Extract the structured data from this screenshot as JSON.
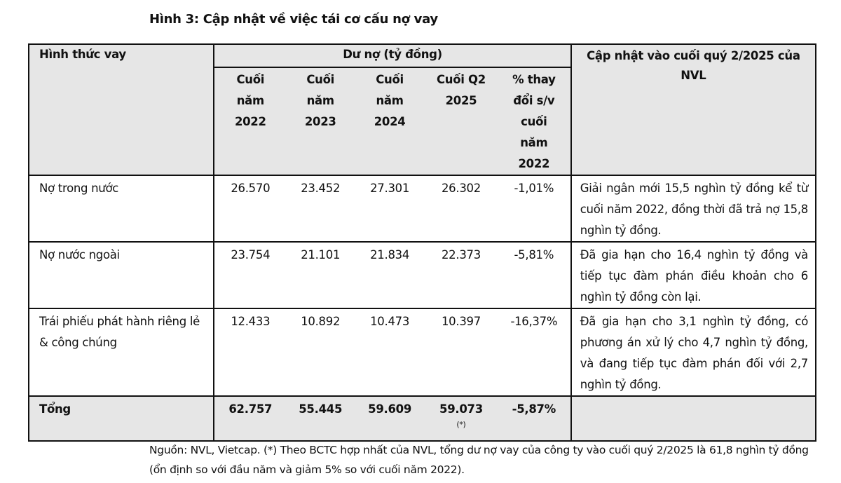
{
  "title": "Hình 3: Cập nhật về việc tái cơ cấu nợ vay",
  "table": {
    "header": {
      "col1": "Hình thức vay",
      "group": "Dư nợ (tỷ đồng)",
      "sub": [
        "Cuối năm 2022",
        "Cuối năm 2023",
        "Cuối năm 2024",
        "Cuối Q2 2025",
        "% thay đổi s/v cuối năm 2022"
      ],
      "col7": "Cập nhật vào cuối quý 2/2025 của NVL"
    },
    "rows": [
      {
        "label": "Nợ trong nước",
        "values": [
          "26.570",
          "23.452",
          "27.301",
          "26.302",
          "-1,01%"
        ],
        "note": "Giải ngân mới 15,5 nghìn tỷ đồng kể từ cuối năm 2022, đồng thời đã trả nợ 15,8 nghìn tỷ đồng."
      },
      {
        "label": "Nợ nước ngoài",
        "values": [
          "23.754",
          "21.101",
          "21.834",
          "22.373",
          "-5,81%"
        ],
        "note": "Đã gia hạn cho 16,4 nghìn tỷ đồng và tiếp tục đàm phán điều khoản cho 6 nghìn tỷ đồng còn lại."
      },
      {
        "label": "Trái phiếu phát hành riêng lẻ & công chúng",
        "values": [
          "12.433",
          "10.892",
          "10.473",
          "10.397",
          "-16,37%"
        ],
        "note": "Đã gia hạn cho 3,1 nghìn tỷ đồng, có phương án xử lý cho 4,7 nghìn tỷ đồng, và đang tiếp tục đàm phán đối với 2,7 nghìn tỷ đồng."
      }
    ],
    "total": {
      "label": "Tổng",
      "values": [
        "62.757",
        "55.445",
        "59.609",
        "59.073",
        "-5,87%"
      ],
      "footnote_mark": "(*)"
    }
  },
  "source": "Nguồn: NVL, Vietcap. (*) Theo BCTC hợp nhất của NVL, tổng dư nợ vay của công ty vào cuối quý 2/2025 là 61,8 nghìn tỷ đồng (ổn định so với đầu năm và giảm 5% so với cuối năm 2022).",
  "colors": {
    "header_bg": "#e6e6e6",
    "border": "#111111"
  }
}
